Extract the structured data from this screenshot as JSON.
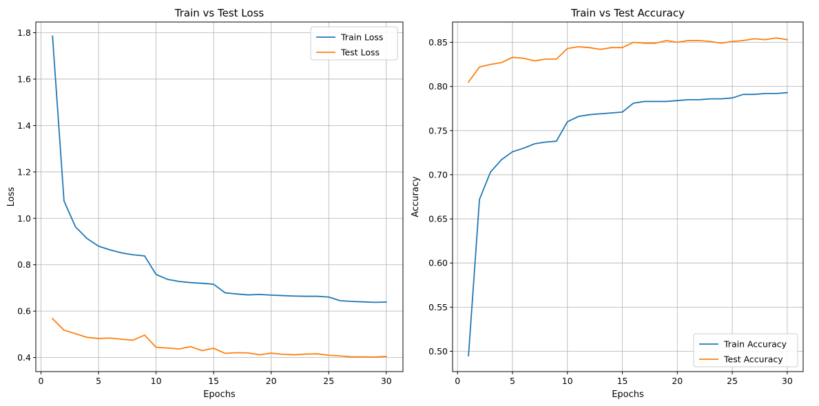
{
  "chart_data": [
    {
      "type": "line",
      "title": "Train vs Test Loss",
      "xlabel": "Epochs",
      "ylabel": "Loss",
      "xlim": [
        -0.45,
        31.45
      ],
      "ylim": [
        0.3395,
        1.846
      ],
      "xticks": [
        0,
        5,
        10,
        15,
        20,
        25,
        30
      ],
      "yticks": [
        0.4,
        0.6,
        0.8,
        1.0,
        1.2,
        1.4,
        1.6,
        1.8
      ],
      "ytick_labels": [
        "0.4",
        "0.6",
        "0.8",
        "1.0",
        "1.2",
        "1.4",
        "1.6",
        "1.8"
      ],
      "grid": true,
      "legend_position": "top-right",
      "x": [
        1,
        2,
        3,
        4,
        5,
        6,
        7,
        8,
        9,
        10,
        11,
        12,
        13,
        14,
        15,
        16,
        17,
        18,
        19,
        20,
        21,
        22,
        23,
        24,
        25,
        26,
        27,
        28,
        29,
        30
      ],
      "series": [
        {
          "name": "Train Loss",
          "color": "#1f77b4",
          "values": [
            1.785,
            1.075,
            0.963,
            0.913,
            0.88,
            0.864,
            0.851,
            0.843,
            0.838,
            0.758,
            0.737,
            0.728,
            0.723,
            0.72,
            0.716,
            0.679,
            0.674,
            0.67,
            0.672,
            0.669,
            0.667,
            0.665,
            0.664,
            0.664,
            0.661,
            0.645,
            0.642,
            0.64,
            0.638,
            0.639
          ]
        },
        {
          "name": "Test Loss",
          "color": "#ff7f0e",
          "values": [
            0.568,
            0.518,
            0.503,
            0.487,
            0.482,
            0.484,
            0.479,
            0.475,
            0.497,
            0.444,
            0.441,
            0.437,
            0.447,
            0.43,
            0.44,
            0.418,
            0.421,
            0.42,
            0.412,
            0.419,
            0.414,
            0.412,
            0.415,
            0.416,
            0.41,
            0.407,
            0.403,
            0.403,
            0.402,
            0.405
          ]
        }
      ]
    },
    {
      "type": "line",
      "title": "Train vs Test Accuracy",
      "xlabel": "Epochs",
      "ylabel": "Accuracy",
      "xlim": [
        -0.45,
        31.45
      ],
      "ylim": [
        0.477,
        0.873
      ],
      "xticks": [
        0,
        5,
        10,
        15,
        20,
        25,
        30
      ],
      "yticks": [
        0.5,
        0.55,
        0.6,
        0.65,
        0.7,
        0.75,
        0.8,
        0.85
      ],
      "ytick_labels": [
        "0.50",
        "0.55",
        "0.60",
        "0.65",
        "0.70",
        "0.75",
        "0.80",
        "0.85"
      ],
      "grid": true,
      "legend_position": "bottom-right",
      "x": [
        1,
        2,
        3,
        4,
        5,
        6,
        7,
        8,
        9,
        10,
        11,
        12,
        13,
        14,
        15,
        16,
        17,
        18,
        19,
        20,
        21,
        22,
        23,
        24,
        25,
        26,
        27,
        28,
        29,
        30
      ],
      "series": [
        {
          "name": "Train Accuracy",
          "color": "#1f77b4",
          "values": [
            0.495,
            0.672,
            0.703,
            0.717,
            0.726,
            0.73,
            0.735,
            0.737,
            0.738,
            0.76,
            0.766,
            0.768,
            0.769,
            0.77,
            0.771,
            0.781,
            0.783,
            0.783,
            0.783,
            0.784,
            0.785,
            0.785,
            0.786,
            0.786,
            0.787,
            0.791,
            0.791,
            0.792,
            0.792,
            0.793
          ]
        },
        {
          "name": "Test Accuracy",
          "color": "#ff7f0e",
          "values": [
            0.805,
            0.822,
            0.825,
            0.827,
            0.833,
            0.832,
            0.829,
            0.831,
            0.831,
            0.843,
            0.845,
            0.844,
            0.842,
            0.844,
            0.844,
            0.85,
            0.849,
            0.849,
            0.852,
            0.85,
            0.852,
            0.852,
            0.851,
            0.849,
            0.851,
            0.852,
            0.854,
            0.853,
            0.855,
            0.853
          ]
        }
      ]
    }
  ]
}
